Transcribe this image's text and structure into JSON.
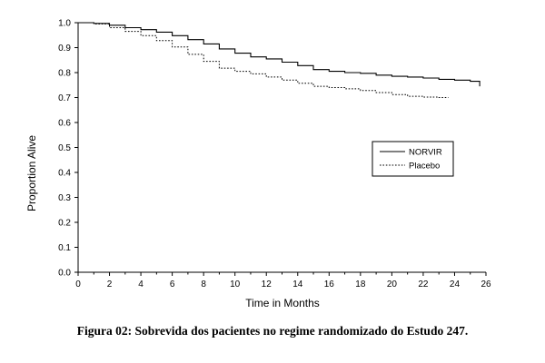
{
  "caption": "Figura 02: Sobrevida dos pacientes no regime randomizado do Estudo 247.",
  "chart_data": {
    "type": "line",
    "title": "",
    "xlabel": "Time in Months",
    "ylabel": "Proportion Alive",
    "xlim": [
      0,
      26
    ],
    "ylim": [
      0.0,
      1.0
    ],
    "x_ticks": [
      0,
      2,
      4,
      6,
      8,
      10,
      12,
      14,
      16,
      18,
      20,
      22,
      24,
      26
    ],
    "y_ticks": [
      "0.0",
      "0.1",
      "0.2",
      "0.3",
      "0.4",
      "0.5",
      "0.6",
      "0.7",
      "0.8",
      "0.9",
      "1.0"
    ],
    "grid": false,
    "legend_position": "center-right",
    "series": [
      {
        "name": "NORVIR",
        "line_style": "solid",
        "color": "#000000",
        "x": [
          0,
          1,
          2,
          3,
          4,
          5,
          6,
          7,
          8,
          9,
          10,
          11,
          12,
          13,
          14,
          15,
          16,
          17,
          18,
          19,
          20,
          21,
          22,
          23,
          24,
          25,
          25.4,
          25.6
        ],
        "y": [
          1.0,
          0.997,
          0.99,
          0.98,
          0.972,
          0.962,
          0.948,
          0.932,
          0.915,
          0.895,
          0.878,
          0.863,
          0.855,
          0.842,
          0.828,
          0.812,
          0.805,
          0.8,
          0.797,
          0.79,
          0.785,
          0.782,
          0.778,
          0.773,
          0.77,
          0.765,
          0.765,
          0.745
        ]
      },
      {
        "name": "Placebo",
        "line_style": "dotted",
        "color": "#000000",
        "x": [
          0,
          1,
          2,
          3,
          4,
          5,
          6,
          7,
          8,
          9,
          10,
          11,
          12,
          13,
          14,
          15,
          16,
          17,
          18,
          19,
          20,
          21,
          22,
          23,
          23.6
        ],
        "y": [
          1.0,
          0.995,
          0.98,
          0.965,
          0.948,
          0.928,
          0.903,
          0.873,
          0.845,
          0.818,
          0.805,
          0.795,
          0.782,
          0.77,
          0.757,
          0.745,
          0.74,
          0.735,
          0.728,
          0.72,
          0.712,
          0.705,
          0.702,
          0.7,
          0.7
        ]
      }
    ]
  }
}
